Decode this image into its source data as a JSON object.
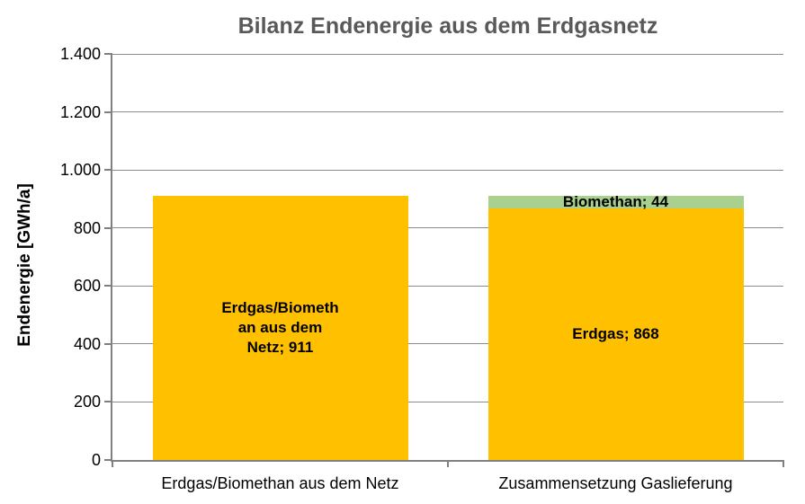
{
  "chart_data": {
    "type": "bar",
    "stacked": true,
    "title": "Bilanz Endenergie aus dem Erdgasnetz",
    "ylabel": "Endenergie [GWh/a]",
    "xlabel": "",
    "ylim": [
      0,
      1400
    ],
    "ytick_step": 200,
    "ytick_labels": [
      "0",
      "200",
      "400",
      "600",
      "800",
      "1.000",
      "1.200",
      "1.400"
    ],
    "grid": true,
    "legend_position": "none",
    "categories": [
      "Erdgas/Biomethan aus dem Netz",
      "Zusammensetzung Gaslieferung"
    ],
    "series": [
      {
        "name": "Erdgas/Biomethan aus dem Netz",
        "color": "#FFC000",
        "values": [
          911,
          0
        ]
      },
      {
        "name": "Erdgas",
        "color": "#FFC000",
        "values": [
          0,
          868
        ]
      },
      {
        "name": "Biomethan",
        "color": "#A9D08E",
        "values": [
          0,
          44
        ]
      }
    ],
    "bars": [
      {
        "category": "Erdgas/Biomethan aus dem Netz",
        "segments": [
          {
            "name": "erdgas-biomethan-aus-dem-netz",
            "value": 911,
            "color": "#FFC000",
            "label_lines": [
              "Erdgas/Biometh",
              "an aus dem",
              "Netz; 911"
            ]
          }
        ]
      },
      {
        "category": "Zusammensetzung Gaslieferung",
        "segments": [
          {
            "name": "erdgas",
            "value": 868,
            "color": "#FFC000",
            "label_lines": [
              "Erdgas; 868"
            ]
          },
          {
            "name": "biomethan",
            "value": 44,
            "color": "#A9D08E",
            "label_lines": [
              "Biomethan; 44"
            ]
          }
        ]
      }
    ],
    "colors": {
      "gold": "#FFC000",
      "green": "#A9D08E",
      "title_text": "#595959",
      "axis": "#808080",
      "gridline": "#8C8C8C",
      "label_text": "#000000"
    }
  }
}
